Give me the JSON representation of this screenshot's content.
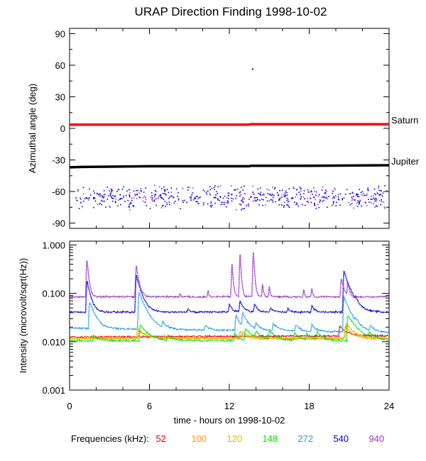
{
  "title": "URAP Direction Finding  1998-10-02",
  "chart_data": [
    {
      "type": "scatter",
      "ylabel": "Azimuthal angle (deg)",
      "xlim": [
        0,
        24
      ],
      "ylim": [
        -95,
        95
      ],
      "yticks": [
        90,
        60,
        30,
        0,
        -30,
        -60,
        -90
      ],
      "lines": [
        {
          "name": "Saturn",
          "color": "#ff0000",
          "x": [
            0,
            13.5,
            13.6,
            24
          ],
          "y": [
            3.5,
            3.5,
            4.0,
            4.0
          ]
        },
        {
          "name": "Jupiter",
          "color": "#000000",
          "x": [
            0,
            1,
            3,
            6,
            10,
            13.5,
            13.6,
            18,
            24
          ],
          "y": [
            -37,
            -36.6,
            -36.4,
            -36,
            -36,
            -36,
            -35.5,
            -35.5,
            -35
          ]
        }
      ],
      "scatter": {
        "colors": [
          "#0000cc",
          "#8a2be2"
        ],
        "x_range": [
          0.4,
          23.9
        ],
        "y_center": -65,
        "y_spread": 10,
        "outlier": {
          "x": 13.7,
          "y": 57
        }
      }
    },
    {
      "type": "line",
      "ylabel": "Intensity (microvolt/sqrt(Hz))",
      "xlabel": "time - hours on 1998-10-02",
      "xlim": [
        0,
        24
      ],
      "xticks": [
        0,
        6,
        12,
        18,
        24
      ],
      "yscale": "log",
      "ylim": [
        0.001,
        1.2
      ],
      "yticks": [
        "1.000",
        "0.100",
        "0.010",
        "0.001"
      ],
      "series": [
        {
          "name": "52",
          "color": "#e00000",
          "baseline": 0.0125,
          "trend_end": 0.0133,
          "bursts": [
            [
              20.3,
              0.008,
              0.5
            ]
          ]
        },
        {
          "name": "100",
          "color": "#ff9900",
          "baseline": 0.0115,
          "bursts": [
            [
              5.1,
              0.006,
              0.6
            ],
            [
              12.8,
              0.005,
              0.4
            ],
            [
              20.7,
              0.01,
              0.5
            ]
          ]
        },
        {
          "name": "120",
          "color": "#d4c000",
          "baseline": 0.012,
          "bursts": [
            [
              5.2,
              0.006,
              0.5
            ],
            [
              13.0,
              0.004,
              0.5
            ],
            [
              20.8,
              0.012,
              0.5
            ]
          ]
        },
        {
          "name": "148",
          "color": "#00e000",
          "baseline": 0.0105,
          "bursts": [
            [
              1.8,
              0.003,
              0.4
            ],
            [
              5.3,
              0.012,
              0.6
            ],
            [
              7.4,
              0.003,
              0.4
            ],
            [
              12.4,
              0.004,
              0.3
            ],
            [
              13.2,
              0.008,
              0.6
            ],
            [
              14.0,
              0.004,
              0.4
            ],
            [
              15.0,
              0.006,
              0.5
            ],
            [
              16.9,
              0.005,
              0.4
            ],
            [
              17.8,
              0.004,
              0.4
            ],
            [
              18.6,
              0.005,
              0.4
            ],
            [
              20.9,
              0.025,
              0.7
            ],
            [
              22.5,
              0.003,
              0.4
            ]
          ]
        },
        {
          "name": "272",
          "color": "#1e9be8",
          "baseline": 0.019,
          "trend_end": 0.0155,
          "bursts": [
            [
              1.5,
              0.05,
              0.4
            ],
            [
              5.2,
              0.09,
              0.5
            ],
            [
              7.0,
              0.006,
              0.3
            ],
            [
              10.2,
              0.004,
              0.3
            ],
            [
              12.5,
              0.02,
              0.3
            ],
            [
              13.0,
              0.02,
              0.4
            ],
            [
              14.0,
              0.006,
              0.3
            ],
            [
              15.3,
              0.007,
              0.4
            ],
            [
              17.0,
              0.006,
              0.3
            ],
            [
              18.2,
              0.006,
              0.3
            ],
            [
              20.6,
              0.07,
              0.5
            ],
            [
              21.5,
              0.004,
              0.3
            ],
            [
              22.6,
              0.005,
              0.3
            ]
          ]
        },
        {
          "name": "540",
          "color": "#0000d0",
          "baseline": 0.041,
          "bursts": [
            [
              1.3,
              0.15,
              0.25
            ],
            [
              5.0,
              0.2,
              0.35
            ],
            [
              8.9,
              0.008,
              0.15
            ],
            [
              12.0,
              0.02,
              0.2
            ],
            [
              12.8,
              0.03,
              0.25
            ],
            [
              13.9,
              0.02,
              0.2
            ],
            [
              15.1,
              0.01,
              0.2
            ],
            [
              16.4,
              0.007,
              0.2
            ],
            [
              18.2,
              0.015,
              0.2
            ],
            [
              20.6,
              0.25,
              0.45
            ],
            [
              21.5,
              0.01,
              0.2
            ]
          ]
        },
        {
          "name": "940",
          "color": "#9932cc",
          "baseline": 0.085,
          "bursts": [
            [
              1.3,
              0.45,
              0.12
            ],
            [
              5.0,
              0.3,
              0.18
            ],
            [
              8.3,
              0.015,
              0.05
            ],
            [
              10.4,
              0.03,
              0.05
            ],
            [
              12.2,
              0.35,
              0.08
            ],
            [
              12.8,
              0.6,
              0.08
            ],
            [
              13.8,
              0.7,
              0.08
            ],
            [
              14.5,
              0.08,
              0.06
            ],
            [
              15.0,
              0.06,
              0.06
            ],
            [
              17.6,
              0.04,
              0.05
            ],
            [
              18.2,
              0.05,
              0.05
            ],
            [
              20.4,
              0.12,
              0.2
            ],
            [
              20.9,
              0.09,
              0.1
            ]
          ]
        }
      ]
    }
  ],
  "legend": {
    "title": "Frequencies (kHz):",
    "items": [
      {
        "label": "52",
        "color": "#e00000"
      },
      {
        "label": "100",
        "color": "#ff9900"
      },
      {
        "label": "120",
        "color": "#d4c000"
      },
      {
        "label": "148",
        "color": "#00e000"
      },
      {
        "label": "272",
        "color": "#1e9be8"
      },
      {
        "label": "540",
        "color": "#0000d0"
      },
      {
        "label": "940",
        "color": "#9932cc"
      }
    ]
  }
}
